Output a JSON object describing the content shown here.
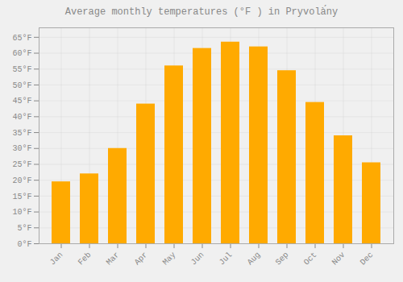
{
  "chart_data": {
    "type": "bar",
    "title": "Average monthly temperatures (°F ) in Pryvolà́ny",
    "categories": [
      "Jan",
      "Feb",
      "Mar",
      "Apr",
      "May",
      "Jun",
      "Jul",
      "Aug",
      "Sep",
      "Oct",
      "Nov",
      "Dec"
    ],
    "values": [
      19.5,
      22,
      30,
      44,
      56,
      61.5,
      63.5,
      62,
      54.5,
      44.5,
      34,
      25.5
    ],
    "color": "#FFAA00",
    "ylim": [
      0,
      68
    ],
    "yticks": [
      {
        "value": 0,
        "label": "0°F"
      },
      {
        "value": 5,
        "label": "5°F"
      },
      {
        "value": 10,
        "label": "10°F"
      },
      {
        "value": 15,
        "label": "15°F"
      },
      {
        "value": 20,
        "label": "20°F"
      },
      {
        "value": 25,
        "label": "25°F"
      },
      {
        "value": 30,
        "label": "30°F"
      },
      {
        "value": 35,
        "label": "35°F"
      },
      {
        "value": 40,
        "label": "40°F"
      },
      {
        "value": 45,
        "label": "45°F"
      },
      {
        "value": 50,
        "label": "50°F"
      },
      {
        "value": 55,
        "label": "55°F"
      },
      {
        "value": 60,
        "label": "60°F"
      },
      {
        "value": 65,
        "label": "65°F"
      }
    ],
    "grid": true
  }
}
